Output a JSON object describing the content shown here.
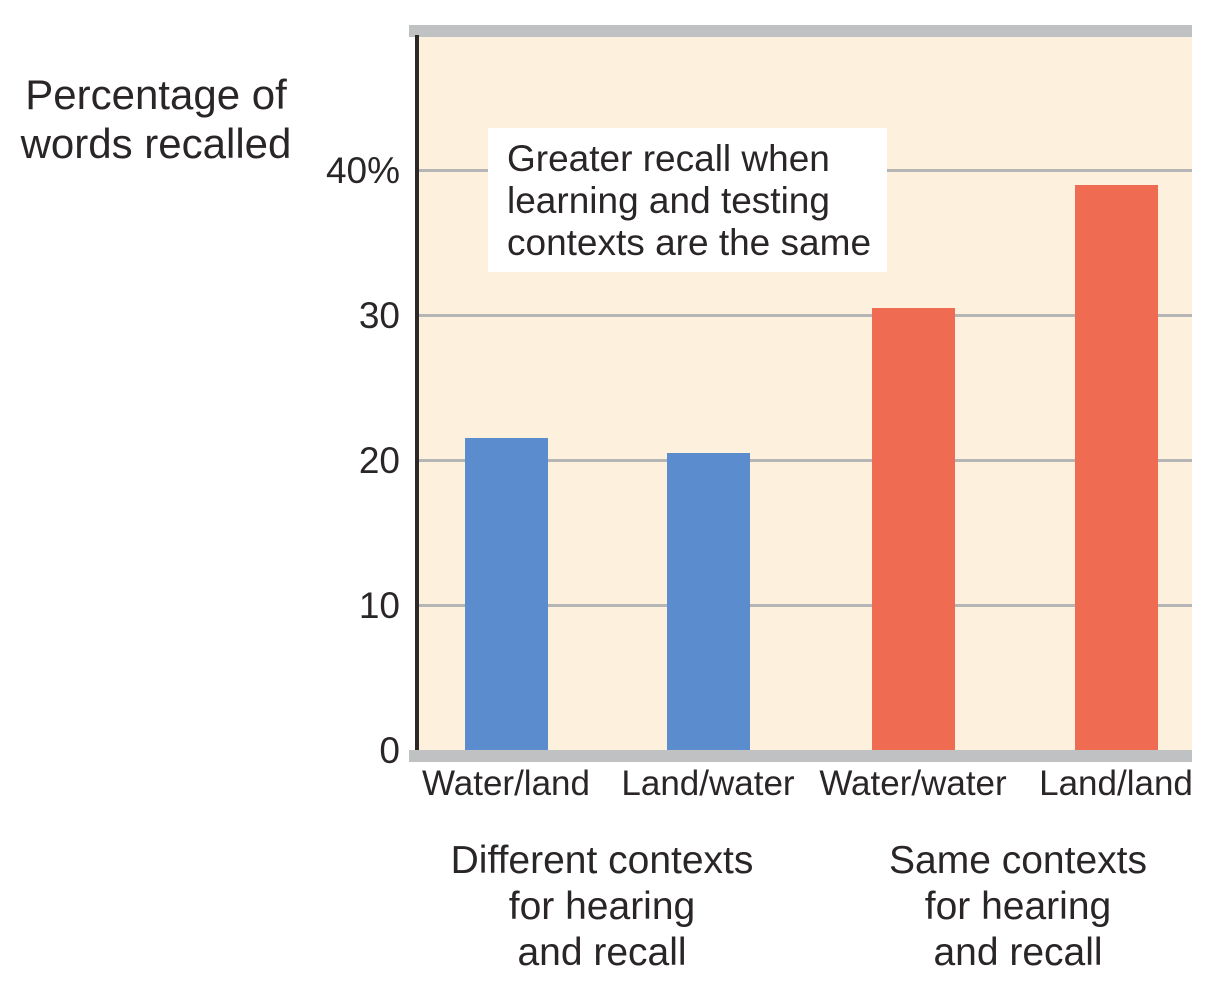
{
  "chart_data": {
    "type": "bar",
    "title": "",
    "ylabel": "Percentage of words recalled",
    "ylabel_lines": [
      "Percentage of",
      "words recalled"
    ],
    "categories": [
      "Water/land",
      "Land/water",
      "Water/water",
      "Land/land"
    ],
    "values": [
      21.5,
      20.5,
      30.5,
      39
    ],
    "bar_colors": [
      "#5B8CCE",
      "#5B8CCE",
      "#EF6B51",
      "#EF6B51"
    ],
    "xlabel": "",
    "ylim": [
      0,
      49
    ],
    "grid": true,
    "legend": "none",
    "yticks": [
      {
        "value": 0,
        "label": "0"
      },
      {
        "value": 10,
        "label": "10"
      },
      {
        "value": 20,
        "label": "20"
      },
      {
        "value": 30,
        "label": "30"
      },
      {
        "value": 40,
        "label": "40%"
      }
    ],
    "annotation_text": "Greater recall when learning and testing contexts are the same",
    "annotation_lines": [
      "Greater recall when",
      "learning and testing",
      "contexts are the same"
    ],
    "groups": [
      {
        "caption": "Different contexts for hearing and recall",
        "caption_lines": [
          "Different contexts",
          "for hearing",
          "and recall"
        ],
        "categories": [
          "Water/land",
          "Land/water"
        ],
        "bar_color": "#5B8CCE"
      },
      {
        "caption": "Same contexts for hearing and recall",
        "caption_lines": [
          "Same contexts",
          "for hearing",
          "and recall"
        ],
        "categories": [
          "Water/water",
          "Land/land"
        ],
        "bar_color": "#EF6B51"
      }
    ],
    "colors": {
      "plot_background": "#FDF1DE",
      "gridline": "#B5B5B5",
      "axis_line": "#2B2826",
      "edge_gray": "#C0C1C3",
      "annotation_background": "#FFFFFF",
      "text": "#2A2627",
      "blue_bar": "#5B8CCE",
      "red_bar": "#EF6B51"
    }
  }
}
